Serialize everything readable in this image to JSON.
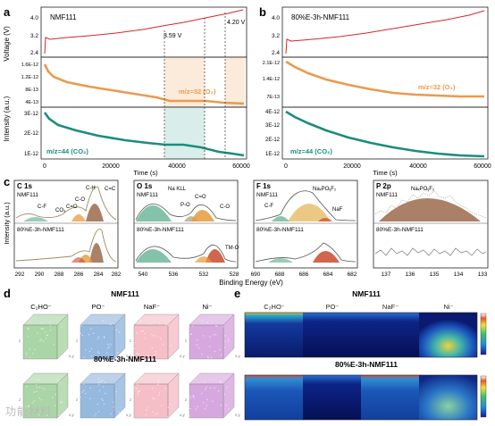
{
  "colors": {
    "voltage": "#d6262a",
    "o2": "#ea9a4f",
    "co2": "#1c8c7e",
    "o2_band": "#fbe3cc",
    "co2_band": "#cfe9e5",
    "xps_nmf": "#9c8a63",
    "xps_fill_teal": "#6fb79a",
    "xps_fill_orange": "#e59b3b",
    "xps_fill_red": "#c94a2e",
    "xps_fill_brown": "#9b6a4c",
    "tof_green": "#65b35c",
    "tof_blue": "#3f7fc7",
    "tof_pink": "#ef8a99",
    "tof_violet": "#b660c6"
  },
  "panel_a": {
    "letter": "a",
    "sample": "NMF111",
    "v1_label": "3.59 V",
    "v2_label": "4.20 V",
    "o2_label": "m/z=32 (O₂)",
    "co2_label": "m/z=44 (CO₂)",
    "y_voltage_ticks": [
      "4.0",
      "3.2",
      "2.4"
    ],
    "y_o2_ticks": [
      "1.6E-12",
      "1.2E-12",
      "8E-13",
      "4E-13"
    ],
    "y_co2_ticks": [
      "3E-12",
      "2E-12",
      "1E-12"
    ]
  },
  "panel_b": {
    "letter": "b",
    "sample": "80%E-3h-NMF111",
    "o2_label": "m/z=32 (O₂)",
    "co2_label": "m/z=44 (CO₂)",
    "y_voltage_ticks": [
      "4.0",
      "3.2",
      "2.4"
    ],
    "y_o2_ticks": [
      "2.1E-12",
      "1.4E-12",
      "7E-13"
    ],
    "y_co2_ticks": [
      "4E-12",
      "3E-12",
      "2E-12",
      "1E-12"
    ]
  },
  "axes_ab": {
    "ylabel_voltage": "Voltage (V)",
    "ylabel_intensity": "Intensity (a.u.)",
    "xlabel": "Time (s)",
    "x_ticks": [
      "0",
      "20000",
      "40000",
      "60000"
    ]
  },
  "panel_c": {
    "letter": "c",
    "xlabel": "Binding Energy (eV)",
    "top_sample": "NMF111",
    "bottom_sample": "80%E-3h-NMF111",
    "sub": [
      {
        "title": "C 1s",
        "ticks": [
          "292",
          "290",
          "288",
          "286",
          "284",
          "282"
        ],
        "peaks": [
          "C=C",
          "C-H",
          "C-O",
          "C=O",
          "CO₃",
          "C-F"
        ]
      },
      {
        "title": "O 1s",
        "ticks": [
          "540",
          "536",
          "532",
          "528"
        ],
        "peaks": [
          "Na KLL",
          "C=O",
          "P-O",
          "C-O",
          "TM-O"
        ]
      },
      {
        "title": "F 1s",
        "ticks": [
          "690",
          "688",
          "686",
          "684",
          "682"
        ],
        "peaks": [
          "NaₓPOᵧF₂",
          "C-F",
          "NaF"
        ]
      },
      {
        "title": "P 2p",
        "ticks": [
          "137",
          "136",
          "135",
          "134",
          "133"
        ],
        "peaks": [
          "NaₓPOᵧF₂"
        ]
      }
    ]
  },
  "panel_d": {
    "letter": "d",
    "top_title": "NMF111",
    "bottom_title": "80%E-3h-NMF111",
    "species": [
      "C₂HO⁻",
      "PO⁻",
      "NaF⁻",
      "Ni⁻"
    ],
    "axis_x": "x",
    "axis_y": "y",
    "axis_z": "z"
  },
  "panel_e": {
    "letter": "e",
    "top_title": "NMF111",
    "bottom_title": "80%E-3h-NMF111",
    "species": [
      "C₂HO⁻",
      "PO⁻",
      "NaF⁻",
      "Ni⁻"
    ]
  },
  "watermark": "功能材料"
}
